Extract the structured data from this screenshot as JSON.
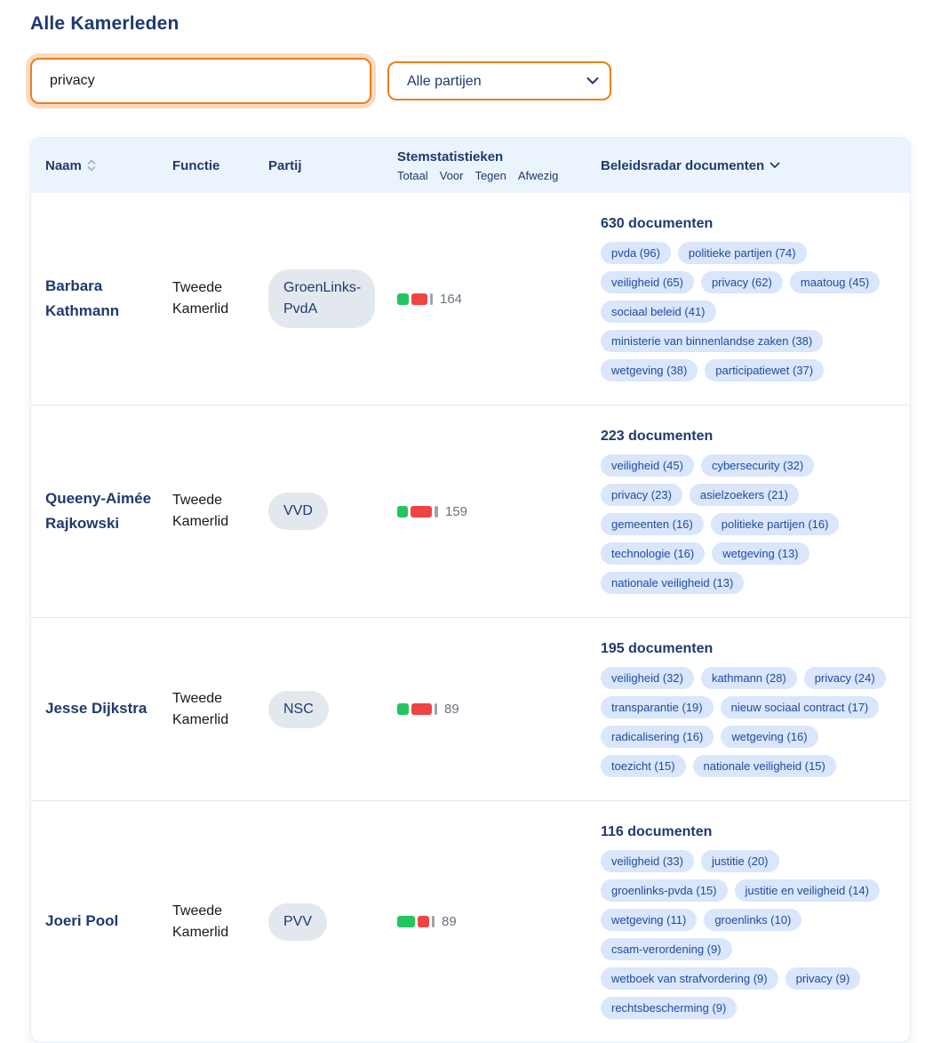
{
  "page": {
    "title": "Alle Kamerleden"
  },
  "filters": {
    "search_value": "privacy",
    "party_select_value": "Alle partijen"
  },
  "table": {
    "headers": {
      "naam": "Naam",
      "functie": "Functie",
      "partij": "Partij",
      "stemstatistieken": "Stemstatistieken",
      "sub": [
        "Totaal",
        "Voor",
        "Tegen",
        "Afwezig"
      ],
      "documenten": "Beleidsradar documenten"
    },
    "rows": [
      {
        "naam": "Barbara Kathmann",
        "functie": "Tweede Kamerlid",
        "partij": "GroenLinks-PvdA",
        "stem": {
          "totaal": "164",
          "bars": {
            "voor": 13,
            "tegen": 18,
            "afwezig": 3
          }
        },
        "doc_count": "630 documenten",
        "tags": [
          "pvda (96)",
          "politieke partijen (74)",
          "veiligheid (65)",
          "privacy (62)",
          "maatoug (45)",
          "sociaal beleid (41)",
          "ministerie van binnenlandse zaken (38)",
          "wetgeving (38)",
          "participatiewet (37)"
        ]
      },
      {
        "naam": "Queeny-Aimée Rajkowski",
        "functie": "Tweede Kamerlid",
        "partij": "VVD",
        "stem": {
          "totaal": "159",
          "bars": {
            "voor": 12,
            "tegen": 24,
            "afwezig": 4
          }
        },
        "doc_count": "223 documenten",
        "tags": [
          "veiligheid (45)",
          "cybersecurity (32)",
          "privacy (23)",
          "asielzoekers (21)",
          "gemeenten (16)",
          "politieke partijen (16)",
          "technologie (16)",
          "wetgeving (13)",
          "nationale veiligheid (13)"
        ]
      },
      {
        "naam": "Jesse Dijkstra",
        "functie": "Tweede Kamerlid",
        "partij": "NSC",
        "stem": {
          "totaal": "89",
          "bars": {
            "voor": 13,
            "tegen": 23,
            "afwezig": 3
          }
        },
        "doc_count": "195 documenten",
        "tags": [
          "veiligheid (32)",
          "kathmann (28)",
          "privacy (24)",
          "transparantie (19)",
          "nieuw sociaal contract (17)",
          "radicalisering (16)",
          "wetgeving (16)",
          "toezicht (15)",
          "nationale veiligheid (15)"
        ]
      },
      {
        "naam": "Joeri Pool",
        "functie": "Tweede Kamerlid",
        "partij": "PVV",
        "stem": {
          "totaal": "89",
          "bars": {
            "voor": 20,
            "tegen": 13,
            "afwezig": 3
          }
        },
        "doc_count": "116 documenten",
        "tags": [
          "veiligheid (33)",
          "justitie (20)",
          "groenlinks-pvda (15)",
          "justitie en veiligheid (14)",
          "wetgeving (11)",
          "groenlinks (10)",
          "csam-verordening (9)",
          "wetboek van strafvordering (9)",
          "privacy (9)",
          "rechtsbescherming (9)"
        ]
      }
    ]
  },
  "colors": {
    "navy": "#1e3a6e",
    "accent_orange": "#ea7f1f",
    "header_bg": "#ebf3fd",
    "tag_bg": "#d9e6fb",
    "tag_text": "#1e4b9e",
    "badge_bg": "#e3e8ef",
    "vote_for_green": "#22c55e",
    "vote_against_red": "#ef4444",
    "vote_absent_gray": "#9ca3af"
  }
}
